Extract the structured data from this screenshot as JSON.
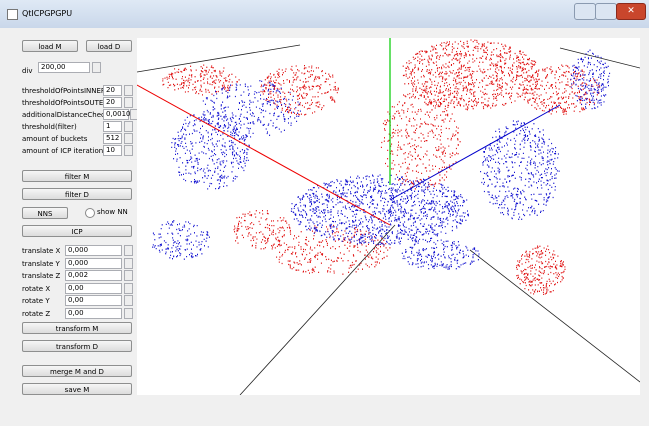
{
  "window": {
    "title": "QtICPGPGPU"
  },
  "panel": {
    "load_m": "load M",
    "load_d": "load D",
    "div": {
      "label": "div",
      "value": "200,00"
    },
    "params": [
      {
        "label": "thresholdOfPointsINNER",
        "value": "20"
      },
      {
        "label": "thresholdOfPointsOUTER",
        "value": "20"
      },
      {
        "label": "additionalDistanceCheck",
        "value": "0,0010"
      },
      {
        "label": "threshold(filter)",
        "value": "1"
      },
      {
        "label": "amount of buckets",
        "value": "512"
      },
      {
        "label": "amount of ICP iteration",
        "value": "10"
      }
    ],
    "filter_m": "filter M",
    "filter_d": "filter D",
    "nns": "NNS",
    "show_nn": "show NN",
    "icp": "ICP",
    "transforms": [
      {
        "label": "translate X",
        "value": "0,000"
      },
      {
        "label": "translate Y",
        "value": "0,000"
      },
      {
        "label": "translate Z",
        "value": "0,002"
      },
      {
        "label": "rotate X",
        "value": "0,00"
      },
      {
        "label": "rotate Y",
        "value": "0,00"
      },
      {
        "label": "rotate Z",
        "value": "0,00"
      }
    ],
    "transform_m": "transform M",
    "transform_d": "transform D",
    "merge": "merge M and D",
    "save_m": "save M"
  }
}
